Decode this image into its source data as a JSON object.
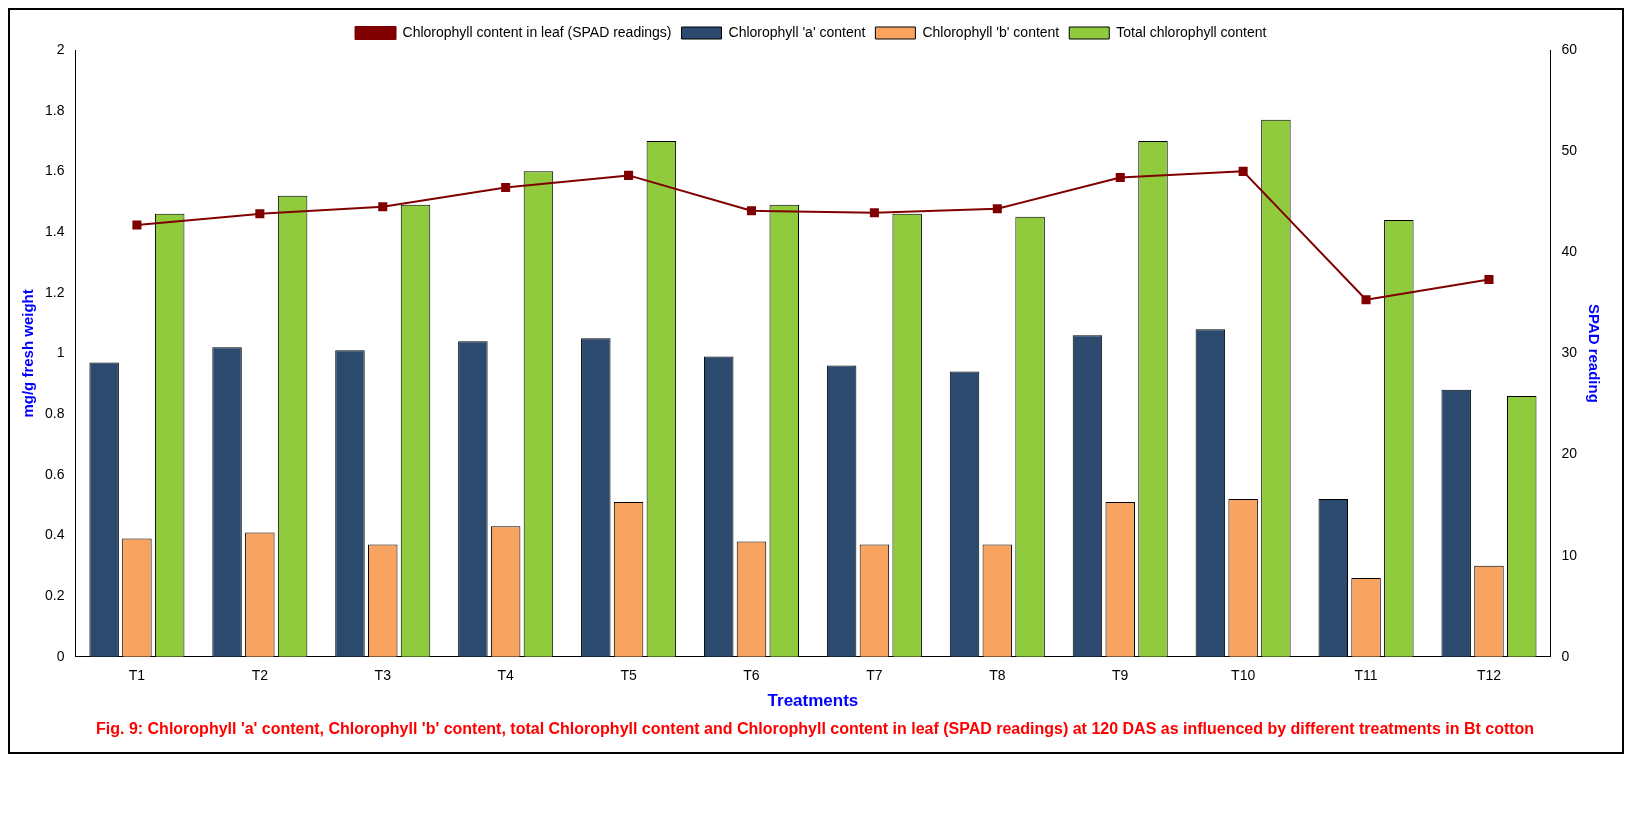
{
  "chart_data": {
    "type": "bar",
    "xlabel": "Treatments",
    "ylabel": "mg/g fresh weight",
    "y2label": "SPAD reading",
    "categories": [
      "T1",
      "T2",
      "T3",
      "T4",
      "T5",
      "T6",
      "T7",
      "T8",
      "T9",
      "T10",
      "T11",
      "T12"
    ],
    "series": [
      {
        "name": "Chlorophyll 'a' content",
        "color": "#2b4a6e",
        "values": [
          0.97,
          1.02,
          1.01,
          1.04,
          1.05,
          0.99,
          0.96,
          0.94,
          1.06,
          1.08,
          0.52,
          0.88
        ]
      },
      {
        "name": "Chlorophyll 'b' content",
        "color": "#f8a460",
        "values": [
          0.39,
          0.41,
          0.37,
          0.43,
          0.51,
          0.38,
          0.37,
          0.37,
          0.51,
          0.52,
          0.26,
          0.3
        ]
      },
      {
        "name": "Total chlorophyll content",
        "color": "#8fcb3c",
        "values": [
          1.46,
          1.52,
          1.49,
          1.6,
          1.7,
          1.49,
          1.46,
          1.45,
          1.7,
          1.77,
          1.44,
          0.86
        ]
      },
      {
        "name": "Chlorophyll content in leaf (SPAD readings)",
        "type": "line",
        "axis": "y2",
        "color": "#800000",
        "values": [
          42.7,
          43.8,
          44.5,
          46.4,
          47.6,
          44.1,
          43.9,
          44.3,
          47.4,
          48.0,
          35.3,
          37.3
        ]
      }
    ],
    "ylim": [
      0,
      2
    ],
    "yticks": [
      0,
      0.2,
      0.4,
      0.6,
      0.8,
      1,
      1.2,
      1.4,
      1.6,
      1.8,
      2
    ],
    "y2lim": [
      0,
      60
    ],
    "y2ticks": [
      0,
      10,
      20,
      30,
      40,
      50,
      60
    ],
    "grid": false,
    "legend": "top",
    "marker": "square",
    "line_style": "solid",
    "annotations": [
      "Fig. 9: Chlorophyll 'a' content, Chlorophyll 'b' content, total Chlorophyll content and Chlorophyll content  in leaf (SPAD  readings) at 120 DAS as influenced by different treatments in Bt cotton"
    ]
  }
}
